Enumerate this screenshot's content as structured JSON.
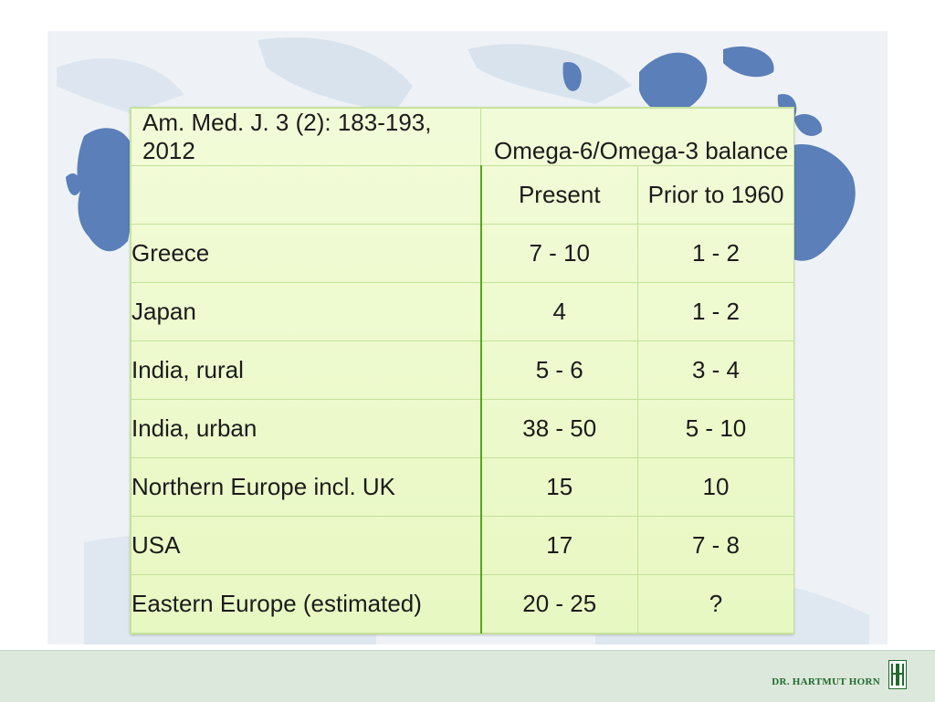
{
  "table": {
    "source": "Am. Med. J. 3 (2): 183-193, 2012",
    "title": "Omega-6/Omega-3 balance",
    "columns": [
      "",
      "Present",
      "Prior to 1960"
    ],
    "rows": [
      {
        "country": "Greece",
        "present": "7 - 10",
        "prior": "1 - 2"
      },
      {
        "country": "Japan",
        "present": "4",
        "prior": "1 - 2"
      },
      {
        "country": "India, rural",
        "present": "5 - 6",
        "prior": "3 - 4"
      },
      {
        "country": "India, urban",
        "present": "38 - 50",
        "prior": "5 - 10"
      },
      {
        "country": "Northern Europe incl. UK",
        "present": "15",
        "prior": "10"
      },
      {
        "country": "USA",
        "present": "17",
        "prior": "7 - 8"
      },
      {
        "country": "Eastern Europe (estimated)",
        "present": "20 - 25",
        "prior": "?"
      }
    ]
  },
  "footer": {
    "author": "DR. HARTMUT HORN",
    "logo_icon": "hh-monogram-icon"
  },
  "colors": {
    "table_bg": "#ebf9c8",
    "grid_line": "#c3e197",
    "column_divider": "#55a51f",
    "map_land": "#5b7fb8",
    "footer_bg": "#dde8dc",
    "author_text": "#1e6b2a"
  }
}
